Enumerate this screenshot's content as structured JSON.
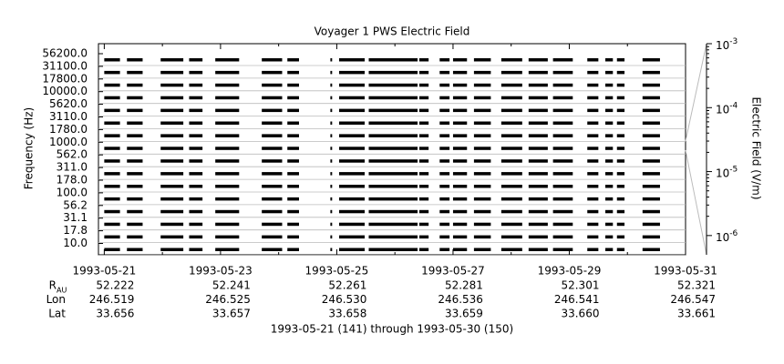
{
  "chart_data": {
    "type": "channel-coverage",
    "title": "Voyager 1 PWS Electric Field",
    "ylabel": "Frequency (Hz)",
    "y2label": "Electric Field (V/m)",
    "footer": "1993-05-21 (141) through 1993-05-30 (150)",
    "channels": [
      "56200.0",
      "31100.0",
      "17800.0",
      "10000.0",
      "5620.0",
      "3110.0",
      "1780.0",
      "1000.0",
      "562.0",
      "311.0",
      "178.0",
      "100.0",
      "56.2",
      "31.1",
      "17.8",
      "10.0"
    ],
    "xlim": [
      -0.1,
      10
    ],
    "xticks": [
      {
        "value": 0,
        "label": "1993-05-21"
      },
      {
        "value": 2,
        "label": "1993-05-23"
      },
      {
        "value": 4,
        "label": "1993-05-25"
      },
      {
        "value": 6,
        "label": "1993-05-27"
      },
      {
        "value": 8,
        "label": "1993-05-29"
      },
      {
        "value": 10,
        "label": "1993-05-31"
      }
    ],
    "xminor": [
      1,
      3,
      5,
      7,
      9
    ],
    "coverage": [
      [
        0.0,
        0.27
      ],
      [
        0.39,
        0.66
      ],
      [
        0.97,
        1.36
      ],
      [
        1.46,
        1.69
      ],
      [
        1.91,
        2.32
      ],
      [
        2.71,
        3.06
      ],
      [
        3.15,
        3.35
      ],
      [
        3.89,
        3.92
      ],
      [
        4.04,
        4.48
      ],
      [
        4.55,
        5.39
      ],
      [
        5.42,
        5.58
      ],
      [
        5.77,
        5.94
      ],
      [
        6.0,
        6.24
      ],
      [
        6.36,
        6.65
      ],
      [
        6.83,
        7.19
      ],
      [
        7.3,
        7.63
      ],
      [
        7.72,
        8.06
      ],
      [
        8.31,
        8.5
      ],
      [
        8.62,
        8.75
      ],
      [
        8.82,
        8.95
      ],
      [
        9.26,
        9.56
      ]
    ],
    "ephemeris": [
      {
        "label": "R",
        "sub": "AU",
        "values": [
          "52.222",
          "52.241",
          "52.261",
          "52.281",
          "52.301",
          "52.321"
        ]
      },
      {
        "label": "Lon",
        "values": [
          "246.519",
          "246.525",
          "246.530",
          "246.536",
          "246.541",
          "246.547"
        ]
      },
      {
        "label": "Lat",
        "values": [
          "33.656",
          "33.657",
          "33.658",
          "33.659",
          "33.660",
          "33.661"
        ]
      }
    ],
    "y2log": true,
    "y2lim": [
      5e-07,
      0.001
    ],
    "y2ticks": [
      {
        "value": 0.001,
        "label": "10-3"
      },
      {
        "value": 0.0001,
        "label": "10-4"
      },
      {
        "value": 1e-05,
        "label": "10-5"
      },
      {
        "value": 1e-06,
        "label": "10-6"
      }
    ],
    "color": "#000000"
  }
}
